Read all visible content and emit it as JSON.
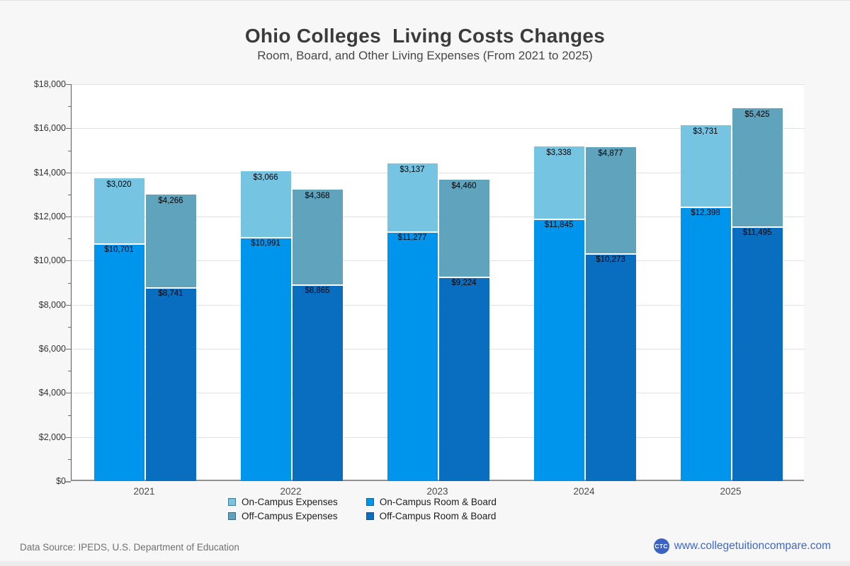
{
  "title": "Ohio Colleges  Living Costs Changes",
  "subtitle": "Room, Board, and Other Living Expenses (From 2021 to 2025)",
  "colors": {
    "on_campus_expenses": "#74c4e2",
    "on_campus_room_board": "#0095ec",
    "off_campus_expenses": "#60a3bc",
    "off_campus_room_board": "#0a6ec0",
    "grid": "#e2e2e2",
    "link_blue": "#3f68cd"
  },
  "chart_data": {
    "type": "bar",
    "stacked": true,
    "categories": [
      "2021",
      "2022",
      "2023",
      "2024",
      "2025"
    ],
    "series": [
      {
        "name": "On-Campus Room & Board",
        "group": "on-campus",
        "color_key": "on_campus_room_board",
        "values": [
          10701,
          10991,
          11277,
          11845,
          12398
        ]
      },
      {
        "name": "On-Campus Expenses",
        "group": "on-campus",
        "color_key": "on_campus_expenses",
        "values": [
          3020,
          3066,
          3137,
          3338,
          3731
        ]
      },
      {
        "name": "Off-Campus Room & Board",
        "group": "off-campus",
        "color_key": "off_campus_room_board",
        "values": [
          8741,
          8865,
          9224,
          10273,
          11495
        ]
      },
      {
        "name": "Off-Campus Expenses",
        "group": "off-campus",
        "color_key": "off_campus_expenses",
        "values": [
          4266,
          4368,
          4460,
          4877,
          5425
        ]
      }
    ],
    "ylim": [
      0,
      18000
    ],
    "y_major_step": 2000,
    "y_minor_step": 1000,
    "y_tick_labels": [
      "$0",
      "$2,000",
      "$4,000",
      "$6,000",
      "$8,000",
      "$10,000",
      "$12,000",
      "$14,000",
      "$16,000",
      "$18,000"
    ],
    "grid": true,
    "value_label_prefix": "$",
    "legend_position": "bottom"
  },
  "legend": {
    "items": [
      {
        "label": "On-Campus Expenses",
        "color_key": "on_campus_expenses"
      },
      {
        "label": "On-Campus Room & Board",
        "color_key": "on_campus_room_board"
      },
      {
        "label": "Off-Campus Expenses",
        "color_key": "off_campus_expenses"
      },
      {
        "label": "Off-Campus Room & Board",
        "color_key": "off_campus_room_board"
      }
    ]
  },
  "footer": {
    "source": "Data Source: IPEDS, U.S. Department of Education",
    "logo": "CTC",
    "site": "www.collegetuitioncompare.com"
  }
}
